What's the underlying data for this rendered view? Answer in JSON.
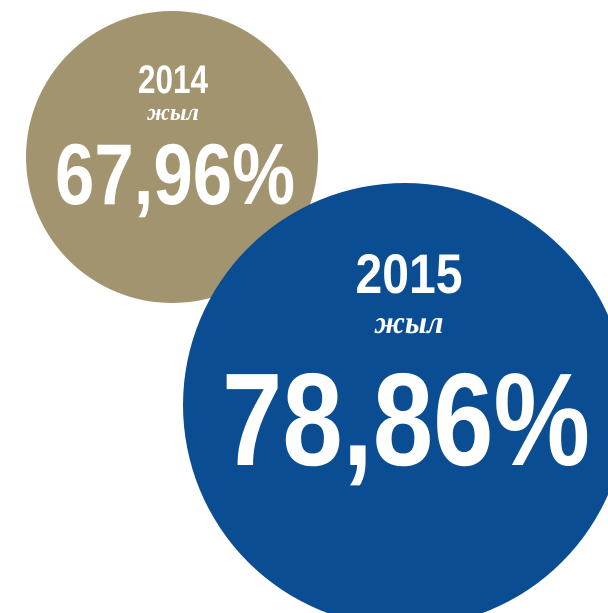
{
  "circles": [
    {
      "year": "2014",
      "unit": "жыл",
      "value": "67,96%",
      "color": "#a39470"
    },
    {
      "year": "2015",
      "unit": "жыл",
      "value": "78,86%",
      "color": "#0b4d92"
    }
  ]
}
